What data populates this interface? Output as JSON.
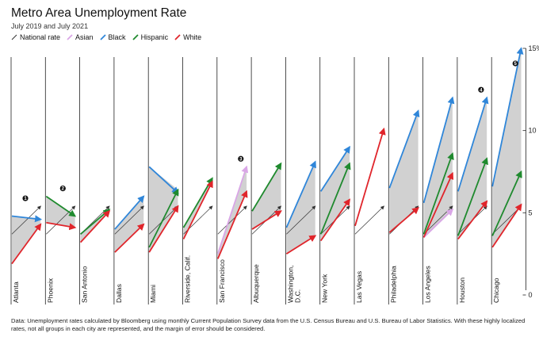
{
  "header": {
    "title": "Metro Area Unemployment Rate",
    "subtitle": "July 2019 and July 2021"
  },
  "legend": [
    {
      "label": "National rate",
      "color": "#333333"
    },
    {
      "label": "Asian",
      "color": "#d9a6e6"
    },
    {
      "label": "Black",
      "color": "#2f86d9"
    },
    {
      "label": "Hispanic",
      "color": "#1f8a2e"
    },
    {
      "label": "White",
      "color": "#e0252b"
    }
  ],
  "footnote": "Data: Unemployment rates calculated by Bloomberg using monthly Current Population Survey data from the U.S. Census Bureau and U.S. Bureau of Labor Statistics. With these highly localized rates, not all groups in each city are represented, and the margin of error should be considered.",
  "chart_data": {
    "type": "line",
    "x": [
      "July 2019",
      "July 2021"
    ],
    "ylim": [
      0,
      15
    ],
    "yticks": [
      {
        "value": 0,
        "label": "0"
      },
      {
        "value": 5,
        "label": "5"
      },
      {
        "value": 10,
        "label": "10"
      },
      {
        "value": 15,
        "label": "15%"
      }
    ],
    "grid": false,
    "shading": "gray area between lowest and highest group per city",
    "colors": {
      "National rate": "#333333",
      "Asian": "#d9a6e6",
      "Black": "#2f86d9",
      "Hispanic": "#1f8a2e",
      "White": "#e0252b"
    },
    "cities": [
      {
        "name": "Atlanta",
        "callout": "1",
        "series": [
          {
            "name": "National rate",
            "values": [
              3.7,
              5.4
            ]
          },
          {
            "name": "Black",
            "values": [
              4.8,
              4.6
            ]
          },
          {
            "name": "White",
            "values": [
              1.9,
              4.3
            ]
          }
        ]
      },
      {
        "name": "Phoenix",
        "callout": "2",
        "series": [
          {
            "name": "National rate",
            "values": [
              3.7,
              5.4
            ]
          },
          {
            "name": "Hispanic",
            "values": [
              6.0,
              4.8
            ]
          },
          {
            "name": "White",
            "values": [
              4.4,
              4.1
            ]
          }
        ]
      },
      {
        "name": "San Antonio",
        "series": [
          {
            "name": "National rate",
            "values": [
              3.7,
              5.4
            ]
          },
          {
            "name": "Hispanic",
            "values": [
              3.7,
              5.2
            ]
          },
          {
            "name": "White",
            "values": [
              3.2,
              5.1
            ]
          }
        ]
      },
      {
        "name": "Dallas",
        "series": [
          {
            "name": "National rate",
            "values": [
              3.7,
              5.4
            ]
          },
          {
            "name": "Black",
            "values": [
              4.0,
              6.0
            ]
          },
          {
            "name": "White",
            "values": [
              2.6,
              4.3
            ]
          }
        ]
      },
      {
        "name": "Miami",
        "series": [
          {
            "name": "National rate",
            "values": [
              3.7,
              5.4
            ]
          },
          {
            "name": "Black",
            "values": [
              7.8,
              6.2
            ]
          },
          {
            "name": "Hispanic",
            "values": [
              2.9,
              6.4
            ]
          },
          {
            "name": "White",
            "values": [
              2.6,
              5.4
            ]
          }
        ]
      },
      {
        "name": "Riverside, Calif.",
        "series": [
          {
            "name": "National rate",
            "values": [
              3.7,
              5.4
            ]
          },
          {
            "name": "Hispanic",
            "values": [
              4.1,
              7.1
            ]
          },
          {
            "name": "White",
            "values": [
              3.4,
              6.9
            ]
          }
        ]
      },
      {
        "name": "San Francisco",
        "callout": "3",
        "series": [
          {
            "name": "National rate",
            "values": [
              3.7,
              5.4
            ]
          },
          {
            "name": "Asian",
            "values": [
              2.5,
              7.8
            ]
          },
          {
            "name": "White",
            "values": [
              2.2,
              6.3
            ]
          }
        ]
      },
      {
        "name": "Albuquerque",
        "series": [
          {
            "name": "National rate",
            "values": [
              3.7,
              5.4
            ]
          },
          {
            "name": "Hispanic",
            "values": [
              5.1,
              8.0
            ]
          },
          {
            "name": "White",
            "values": [
              4.0,
              5.1
            ]
          }
        ]
      },
      {
        "name": "Washington, D.C.",
        "series": [
          {
            "name": "National rate",
            "values": [
              3.7,
              5.4
            ]
          },
          {
            "name": "Black",
            "values": [
              4.1,
              8.1
            ]
          },
          {
            "name": "White",
            "values": [
              2.5,
              3.6
            ]
          }
        ]
      },
      {
        "name": "New York",
        "series": [
          {
            "name": "National rate",
            "values": [
              3.7,
              5.4
            ]
          },
          {
            "name": "Black",
            "values": [
              6.3,
              9.0
            ]
          },
          {
            "name": "Hispanic",
            "values": [
              3.7,
              8.0
            ]
          },
          {
            "name": "White",
            "values": [
              3.3,
              5.8
            ]
          }
        ]
      },
      {
        "name": "Las Vegas",
        "series": [
          {
            "name": "National rate",
            "values": [
              3.7,
              5.4
            ]
          },
          {
            "name": "White",
            "values": [
              4.2,
              10.1
            ]
          }
        ]
      },
      {
        "name": "Philadelphia",
        "series": [
          {
            "name": "National rate",
            "values": [
              3.7,
              5.4
            ]
          },
          {
            "name": "Black",
            "values": [
              6.5,
              11.2
            ]
          },
          {
            "name": "White",
            "values": [
              3.8,
              5.3
            ]
          }
        ]
      },
      {
        "name": "Los Angeles",
        "series": [
          {
            "name": "National rate",
            "values": [
              3.7,
              5.4
            ]
          },
          {
            "name": "Asian",
            "values": [
              3.5,
              5.2
            ]
          },
          {
            "name": "Black",
            "values": [
              5.6,
              12.0
            ]
          },
          {
            "name": "Hispanic",
            "values": [
              3.7,
              8.6
            ]
          },
          {
            "name": "White",
            "values": [
              3.5,
              7.4
            ]
          }
        ]
      },
      {
        "name": "Houston",
        "callout": "4",
        "series": [
          {
            "name": "National rate",
            "values": [
              3.7,
              5.4
            ]
          },
          {
            "name": "Black",
            "values": [
              6.3,
              12.0
            ]
          },
          {
            "name": "Hispanic",
            "values": [
              3.6,
              8.3
            ]
          },
          {
            "name": "White",
            "values": [
              3.4,
              5.7
            ]
          }
        ]
      },
      {
        "name": "Chicago",
        "callout": "5",
        "series": [
          {
            "name": "National rate",
            "values": [
              3.7,
              5.4
            ]
          },
          {
            "name": "Black",
            "values": [
              6.6,
              15.0
            ]
          },
          {
            "name": "Hispanic",
            "values": [
              3.6,
              7.5
            ]
          },
          {
            "name": "White",
            "values": [
              2.9,
              5.5
            ]
          }
        ]
      }
    ]
  }
}
